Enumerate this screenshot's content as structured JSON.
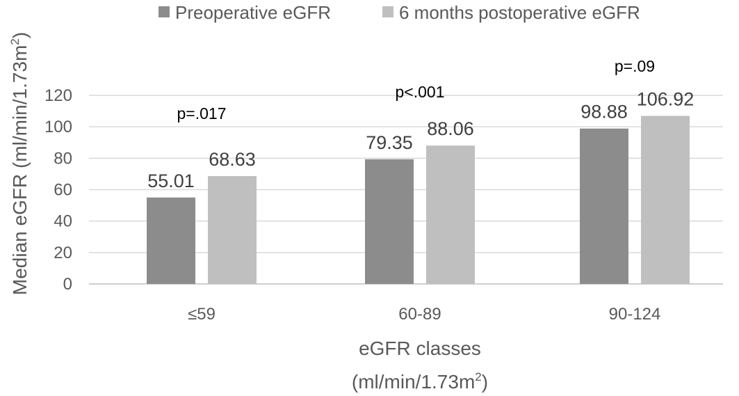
{
  "chart_data": {
    "type": "bar",
    "categories": [
      "≤59",
      "60-89",
      "90-124"
    ],
    "series": [
      {
        "name": "Preoperative eGFR",
        "values": [
          55.01,
          79.35,
          98.88
        ],
        "labels": [
          "55.01",
          "79.35",
          "98.88"
        ],
        "color": "#8c8c8c"
      },
      {
        "name": "6 months postoperative eGFR",
        "values": [
          68.63,
          88.06,
          106.92
        ],
        "labels": [
          "68.63",
          "88.06",
          "106.92"
        ],
        "color": "#bfbfbf"
      }
    ],
    "annotations": [
      "p=.017",
      "p<.001",
      "p=.09"
    ],
    "yticks": [
      "0",
      "20",
      "40",
      "60",
      "80",
      "100",
      "120"
    ],
    "ylim": [
      0,
      120
    ],
    "grid": true,
    "legend": "top-center",
    "ylabel": {
      "base": "Median eGFR (ml/min/1.73m",
      "sup": "2",
      "close": ")"
    },
    "xlabel": {
      "line1": "eGFR classes",
      "line2_base": "(ml/min/1.73m",
      "line2_sup": "2",
      "line2_close": ")"
    }
  }
}
